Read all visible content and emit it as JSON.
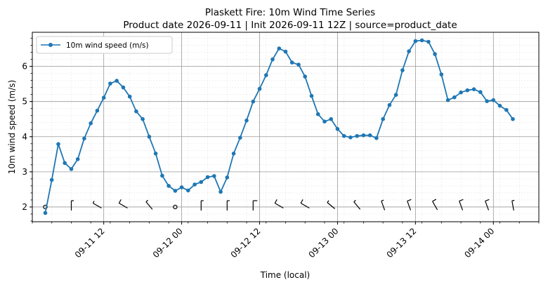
{
  "chart_data": {
    "type": "line",
    "title": "Plaskett Fire: 10m Wind Time Series",
    "subtitle": "Product date 2026-09-11 | Init 2026-09-11 12Z | source=product_date",
    "xlabel": "Time (local)",
    "ylabel": "10m wind speed (m/s)",
    "x_start": "2026-09-11 03:00",
    "x_step_hours": 1,
    "ylim": [
      1.58,
      6.97
    ],
    "xlim": [
      "2026-09-11 01:00",
      "2026-09-14 07:00"
    ],
    "x_ticks": [
      "09-11 12",
      "09-12 00",
      "09-12 12",
      "09-13 00",
      "09-13 12",
      "09-14 00"
    ],
    "y_ticks": [
      2,
      3,
      4,
      5,
      6
    ],
    "grid": true,
    "legend": "top-left",
    "series_color": "#1f77b4",
    "series": [
      {
        "name": "10m wind speed (m/s)",
        "values": [
          1.83,
          2.77,
          3.79,
          3.25,
          3.08,
          3.36,
          3.95,
          4.38,
          4.74,
          5.11,
          5.51,
          5.59,
          5.4,
          5.14,
          4.72,
          4.5,
          4.0,
          3.52,
          2.89,
          2.6,
          2.46,
          2.56,
          2.47,
          2.64,
          2.71,
          2.85,
          2.88,
          2.43,
          2.84,
          3.52,
          3.97,
          4.46,
          5.0,
          5.36,
          5.75,
          6.2,
          6.51,
          6.42,
          6.11,
          6.05,
          5.71,
          5.16,
          4.64,
          4.43,
          4.5,
          4.22,
          4.02,
          3.98,
          4.02,
          4.04,
          4.04,
          3.96,
          4.5,
          4.9,
          5.19,
          5.89,
          6.43,
          6.72,
          6.74,
          6.7,
          6.35,
          5.77,
          5.04,
          5.12,
          5.26,
          5.32,
          5.35,
          5.27,
          5.01,
          5.04,
          4.88,
          4.76,
          4.5
        ]
      }
    ],
    "wind_barbs": {
      "y": 2.0,
      "every_hours": 4,
      "directions_deg": [
        360,
        360,
        300,
        300,
        320,
        320,
        360,
        360,
        360,
        300,
        300,
        310,
        320,
        340,
        340,
        330,
        340,
        340,
        350,
        340
      ]
    }
  }
}
